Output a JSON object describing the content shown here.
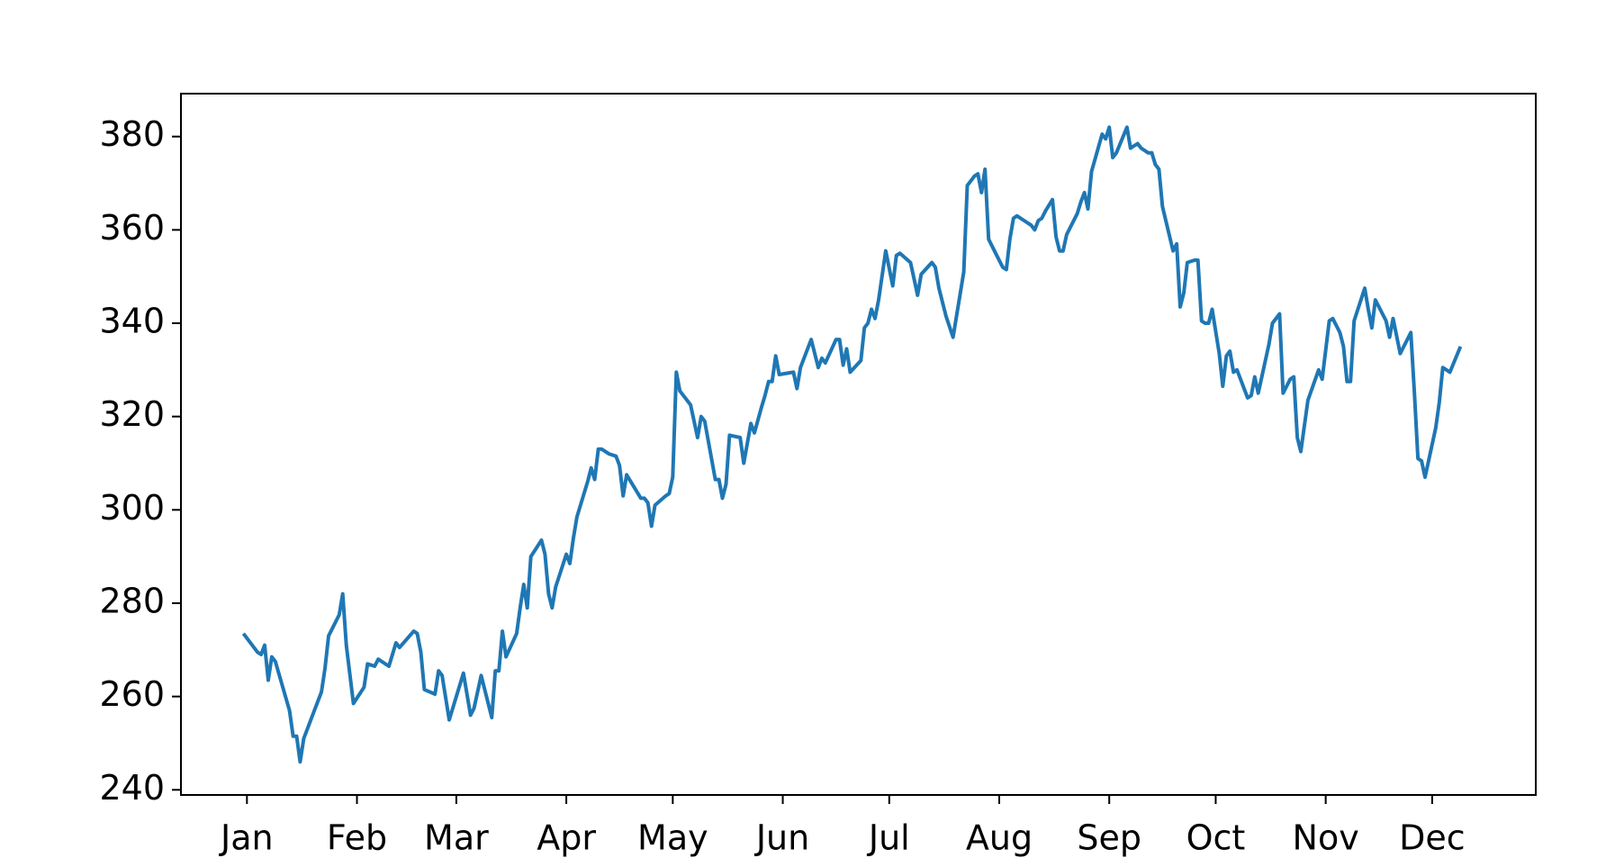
{
  "chart_data": {
    "type": "line",
    "color": "#1f77b4",
    "grid": false,
    "x": [
      0,
      4,
      5,
      6,
      7,
      8,
      9,
      13,
      14,
      15,
      16,
      17,
      20,
      22,
      23,
      24,
      27,
      28,
      29,
      31,
      34,
      35,
      37,
      38,
      41,
      43,
      44,
      48,
      49,
      50,
      51,
      54,
      55,
      56,
      58,
      62,
      64,
      65,
      67,
      70,
      71,
      72,
      73,
      74,
      77,
      78,
      79,
      80,
      81,
      84,
      85,
      86,
      87,
      88,
      91,
      92,
      93,
      94,
      97,
      98,
      99,
      100,
      101,
      103,
      105,
      106,
      107,
      108,
      112,
      113,
      114,
      115,
      116,
      119,
      120,
      121,
      122,
      123,
      126,
      128,
      129,
      130,
      133,
      134,
      135,
      136,
      137,
      140,
      141,
      143,
      144,
      146,
      147,
      148,
      149,
      150,
      151,
      155,
      156,
      157,
      160,
      162,
      163,
      164,
      167,
      168,
      169,
      170,
      171,
      174,
      175,
      176,
      177,
      178,
      179,
      181,
      183,
      184,
      185,
      188,
      189,
      190,
      191,
      194,
      195,
      196,
      198,
      200,
      203,
      204,
      206,
      207,
      208,
      209,
      210,
      212,
      214,
      215,
      216,
      217,
      218,
      220,
      222,
      223,
      224,
      225,
      226,
      228,
      229,
      230,
      231,
      232,
      235,
      236,
      237,
      238,
      239,
      242,
      243,
      244,
      245,
      246,
      249,
      250,
      251,
      252,
      253,
      255,
      256,
      257,
      258,
      259,
      262,
      263,
      264,
      265,
      266,
      268,
      269,
      270,
      271,
      272,
      273,
      275,
      276,
      277,
      278,
      279,
      280,
      283,
      284,
      285,
      286,
      289,
      290,
      292,
      293,
      295,
      296,
      297,
      298,
      300,
      303,
      304,
      306,
      307,
      309,
      310,
      311,
      312,
      313,
      316,
      317,
      318,
      319,
      322,
      323,
      324,
      326,
      329,
      330,
      331,
      332,
      333,
      336,
      337,
      338,
      339,
      340,
      343
    ],
    "values": [
      273.5,
      269.5,
      269,
      271,
      263.5,
      268.5,
      267.5,
      257,
      251.5,
      251.5,
      246,
      251,
      257,
      261,
      266,
      273,
      277.5,
      282,
      271,
      258.5,
      262,
      267,
      266.5,
      268,
      266.5,
      271.5,
      270.5,
      274,
      273.5,
      269.5,
      261.5,
      260.5,
      265.5,
      264.5,
      255,
      265,
      256,
      257.5,
      264.5,
      255.5,
      265.5,
      265.5,
      274,
      268.5,
      273.5,
      279,
      284,
      279,
      290,
      293.5,
      290.5,
      282,
      279,
      283.5,
      290.5,
      288.5,
      294,
      298.5,
      306,
      309,
      306.5,
      313,
      313,
      312,
      311.5,
      309.5,
      303,
      307.5,
      302.5,
      302.5,
      301.5,
      296.5,
      301,
      303,
      303.5,
      307,
      329.5,
      325.5,
      322.5,
      315.5,
      320,
      319,
      306.5,
      306.5,
      302.5,
      305.5,
      316,
      315.5,
      310,
      318.5,
      316.5,
      322,
      324.5,
      327.5,
      327.5,
      333,
      329,
      329.5,
      326,
      330.5,
      336.5,
      330.5,
      332.5,
      331.5,
      336.5,
      336.5,
      331,
      334.5,
      329.5,
      332,
      339,
      340,
      343,
      341,
      345,
      355.5,
      348,
      354.5,
      355,
      353,
      349.5,
      346,
      350.5,
      353,
      352,
      347.5,
      341.5,
      337,
      351,
      369.5,
      371.5,
      372,
      368,
      373,
      358,
      355,
      352,
      351.5,
      358,
      362.5,
      363,
      362,
      361,
      360,
      362,
      362.5,
      364,
      366.5,
      358.5,
      355.5,
      355.5,
      359,
      363.5,
      366,
      368,
      364.5,
      372.5,
      380.5,
      379.5,
      382,
      375.5,
      376.5,
      382,
      377.5,
      378,
      378.5,
      377.5,
      376.5,
      376.5,
      374,
      373,
      365,
      355.5,
      357,
      343.5,
      346.5,
      353,
      353.5,
      353.5,
      340.5,
      340,
      340,
      343,
      333.5,
      326.5,
      333,
      334,
      329.5,
      330,
      324,
      324.5,
      328.5,
      325,
      335.5,
      340,
      342,
      325,
      328,
      328.5,
      315.5,
      312.5,
      323.5,
      330,
      328,
      340.5,
      341,
      338,
      335,
      327.5,
      327.5,
      340.5,
      347.5,
      343,
      339,
      345,
      340.5,
      337,
      341,
      333.5,
      338,
      325,
      311,
      310.5,
      307,
      317.5,
      323,
      330.5,
      330,
      329.5,
      335
    ],
    "xlim": [
      -17.6,
      364.2
    ],
    "xticks": [
      {
        "value": 1,
        "label": "Jan"
      },
      {
        "value": 32,
        "label": "Feb"
      },
      {
        "value": 60,
        "label": "Mar"
      },
      {
        "value": 91,
        "label": "Apr"
      },
      {
        "value": 121,
        "label": "May"
      },
      {
        "value": 152,
        "label": "Jun"
      },
      {
        "value": 182,
        "label": "Jul"
      },
      {
        "value": 213,
        "label": "Aug"
      },
      {
        "value": 244,
        "label": "Sep"
      },
      {
        "value": 274,
        "label": "Oct"
      },
      {
        "value": 305,
        "label": "Nov"
      },
      {
        "value": 335,
        "label": "Dec"
      }
    ],
    "ylim": [
      238.9,
      389.2
    ],
    "yticks": [
      240,
      260,
      280,
      300,
      320,
      340,
      360,
      380
    ]
  }
}
